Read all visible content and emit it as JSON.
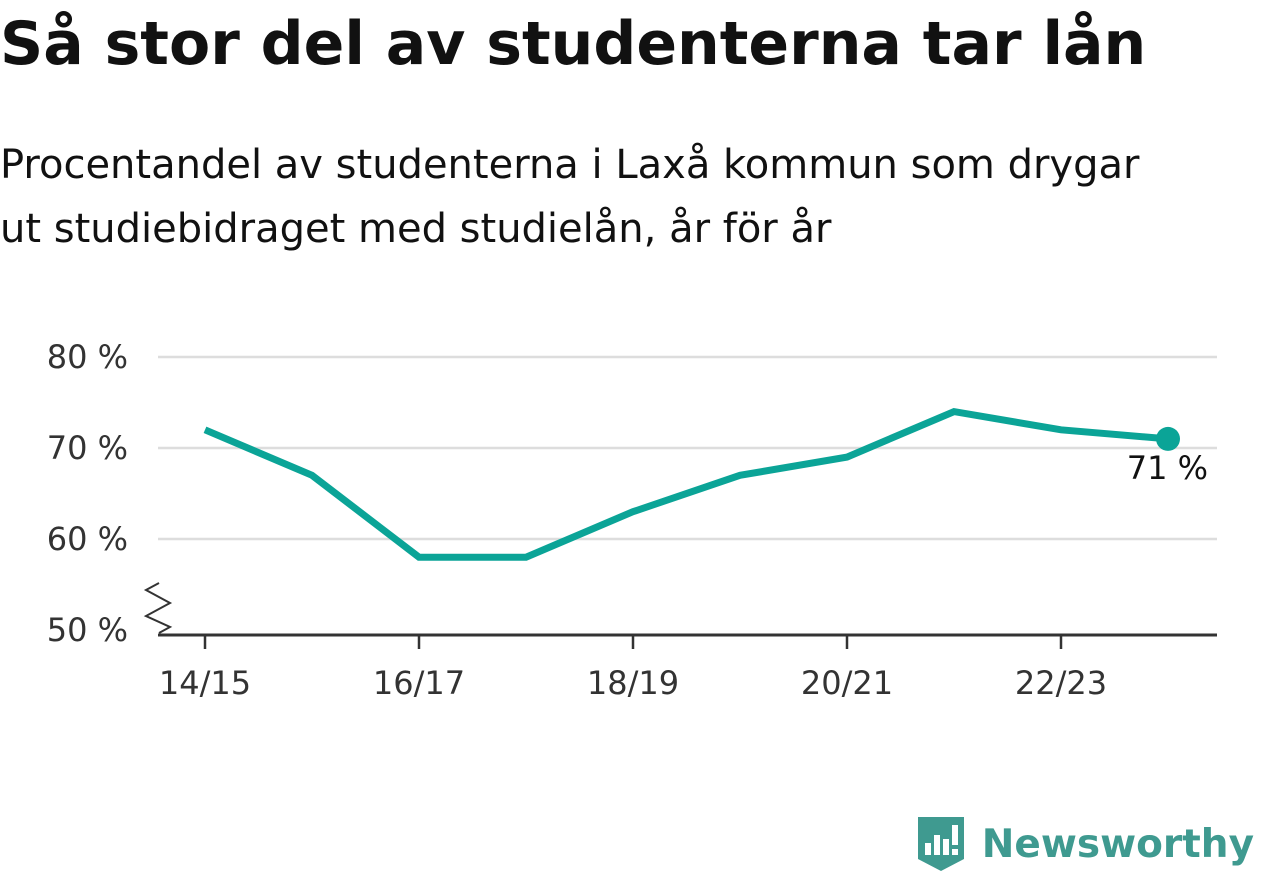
{
  "title": "Så stor del av studenterna tar lån",
  "subtitle_lines": [
    "Procentandel av studenterna i Laxå kommun som drygar",
    "ut studiebidraget med studielån, år för år"
  ],
  "brand": "Newsworthy",
  "colors": {
    "line": "#0ba497",
    "grid": "#dddddd",
    "axis": "#333333",
    "brand": "#3f9a90"
  },
  "chart_data": {
    "type": "line",
    "x": [
      "14/15",
      "15/16",
      "16/17",
      "17/18",
      "18/19",
      "19/20",
      "20/21",
      "21/22",
      "22/23",
      "23/24"
    ],
    "x_tick_labels": [
      "14/15",
      "16/17",
      "18/19",
      "20/21",
      "22/23"
    ],
    "series": [
      {
        "values": [
          72,
          67,
          58,
          58,
          63,
          67,
          69,
          74,
          72,
          71
        ]
      }
    ],
    "y_ticks": [
      50,
      60,
      70,
      80
    ],
    "y_tick_labels": [
      "50 %",
      "60 %",
      "70 %",
      "80 %"
    ],
    "ylim": [
      50,
      80
    ],
    "y_axis_break": true,
    "grid": true,
    "end_label": "71 %"
  }
}
